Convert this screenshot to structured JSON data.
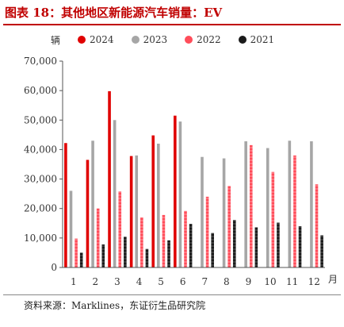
{
  "header": {
    "title": "图表 18：其他地区新能源汽车销量：EV"
  },
  "footer": {
    "source": "资料来源：Marklines，东证衍生品研究院"
  },
  "chart_data": {
    "type": "bar",
    "unit_label": "辆",
    "x_unit_label": "月",
    "categories": [
      "1",
      "2",
      "3",
      "4",
      "5",
      "6",
      "7",
      "8",
      "9",
      "10",
      "11",
      "12"
    ],
    "ylim": [
      0,
      70000
    ],
    "yticks": [
      0,
      10000,
      20000,
      30000,
      40000,
      50000,
      60000,
      70000
    ],
    "ytick_labels": [
      "0",
      "10,000",
      "20,000",
      "30,000",
      "40,000",
      "50,000",
      "60,000",
      "70,000"
    ],
    "grid": false,
    "legend_position": "top",
    "series": [
      {
        "name": "2024",
        "color": "#e00000",
        "values": [
          42200,
          36500,
          59800,
          37800,
          44800,
          51500,
          null,
          null,
          null,
          null,
          null,
          null
        ]
      },
      {
        "name": "2023",
        "color": "#a6a6a6",
        "values": [
          26000,
          43000,
          50000,
          38000,
          42000,
          49500,
          37500,
          37000,
          42800,
          40500,
          43000,
          42800
        ]
      },
      {
        "name": "2022",
        "color": "#ff4d5a",
        "values": [
          9800,
          20000,
          25800,
          17000,
          17800,
          19200,
          24000,
          27600,
          41500,
          32400,
          38000,
          28200
        ]
      },
      {
        "name": "2021",
        "color": "#1a1a1a",
        "values": [
          5000,
          7800,
          10400,
          6300,
          9200,
          14800,
          11700,
          16100,
          13600,
          15200,
          14000,
          10900
        ]
      }
    ]
  }
}
